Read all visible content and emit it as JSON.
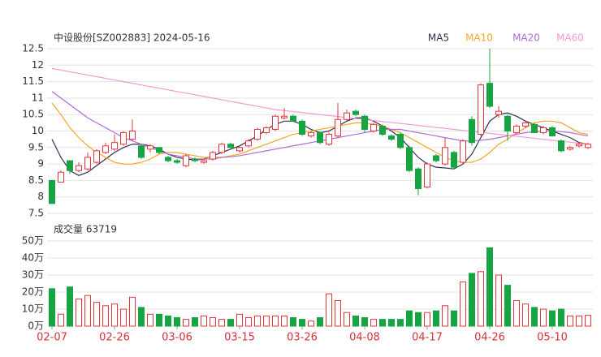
{
  "chart_data": [
    {
      "type": "candlestick",
      "title": "中设股份[SZ002883] 2024-05-16",
      "up_color": "#e8333b",
      "down_color": "#17a443",
      "ylim": [
        7.5,
        12.5
      ],
      "yticks": [
        12.5,
        12,
        11.5,
        11,
        10.5,
        10,
        9.5,
        9,
        8.5,
        8,
        7.5
      ],
      "grid": true,
      "open": [
        8.5,
        8.45,
        9.1,
        8.8,
        8.85,
        9.05,
        9.35,
        9.45,
        9.6,
        9.75,
        9.55,
        9.45,
        9.5,
        9.2,
        9.1,
        8.95,
        9.15,
        9.05,
        9.15,
        9.35,
        9.6,
        9.4,
        9.55,
        9.75,
        9.95,
        10.05,
        10.4,
        10.45,
        10.3,
        9.85,
        9.95,
        9.6,
        9.85,
        10.35,
        10.6,
        10.45,
        10.0,
        10.15,
        9.85,
        9.9,
        9.5,
        8.85,
        8.3,
        9.25,
        9.0,
        9.35,
        9.05,
        10.35,
        9.9,
        11.45,
        10.5,
        10.45,
        9.95,
        10.15,
        10.2,
        9.95,
        10.1,
        9.7,
        9.45,
        9.55,
        9.5
      ],
      "high": [
        8.5,
        8.8,
        9.1,
        9.05,
        9.35,
        9.45,
        9.65,
        9.9,
        10.0,
        10.35,
        9.6,
        9.6,
        9.5,
        9.25,
        9.15,
        9.3,
        9.2,
        9.15,
        9.4,
        9.65,
        9.65,
        9.55,
        9.75,
        10.1,
        10.15,
        10.5,
        10.7,
        10.5,
        10.35,
        10.0,
        10.0,
        9.95,
        10.85,
        10.65,
        10.65,
        10.5,
        10.25,
        10.2,
        9.9,
        9.95,
        9.55,
        8.9,
        9.05,
        9.3,
        9.8,
        9.4,
        9.75,
        10.45,
        11.45,
        12.5,
        10.75,
        10.5,
        10.2,
        10.3,
        10.25,
        10.15,
        10.15,
        9.75,
        9.55,
        9.65,
        9.65
      ],
      "low": [
        7.8,
        8.45,
        8.7,
        8.75,
        8.8,
        9.0,
        9.3,
        9.4,
        9.55,
        9.7,
        9.15,
        9.35,
        9.3,
        9.05,
        9.0,
        8.9,
        9.05,
        9.0,
        9.1,
        9.3,
        9.5,
        9.35,
        9.5,
        9.7,
        9.9,
        10.0,
        10.35,
        10.3,
        9.85,
        9.8,
        9.6,
        9.55,
        9.8,
        10.3,
        10.45,
        9.95,
        9.95,
        9.85,
        9.7,
        9.45,
        8.75,
        8.05,
        8.25,
        9.05,
        8.95,
        8.85,
        9.0,
        9.55,
        9.85,
        10.7,
        10.4,
        9.7,
        9.9,
        10.1,
        9.95,
        9.9,
        9.85,
        9.35,
        9.4,
        9.5,
        9.45
      ],
      "close": [
        7.8,
        8.75,
        8.8,
        8.95,
        9.2,
        9.4,
        9.55,
        9.65,
        9.95,
        10.0,
        9.2,
        9.55,
        9.35,
        9.1,
        9.05,
        9.25,
        9.1,
        9.1,
        9.35,
        9.6,
        9.5,
        9.5,
        9.7,
        10.05,
        10.1,
        10.45,
        10.45,
        10.3,
        9.9,
        9.95,
        9.65,
        9.9,
        10.35,
        10.55,
        10.5,
        10.05,
        10.2,
        9.9,
        9.75,
        9.5,
        8.8,
        8.25,
        9.0,
        9.1,
        9.5,
        8.9,
        9.7,
        9.65,
        11.4,
        10.75,
        10.6,
        10.0,
        10.15,
        10.25,
        9.95,
        10.1,
        9.85,
        9.4,
        9.5,
        9.6,
        9.6
      ],
      "series": [
        {
          "name": "MA5",
          "color": "#2e3150",
          "values": [
            9.75,
            9.2,
            8.8,
            8.65,
            8.75,
            8.95,
            9.15,
            9.35,
            9.5,
            9.6,
            9.6,
            9.55,
            9.45,
            9.3,
            9.2,
            9.15,
            9.12,
            9.15,
            9.25,
            9.35,
            9.45,
            9.55,
            9.7,
            9.85,
            10.05,
            10.2,
            10.3,
            10.3,
            10.2,
            10.05,
            9.95,
            10.0,
            10.15,
            10.3,
            10.4,
            10.4,
            10.3,
            10.15,
            10.0,
            9.8,
            9.5,
            9.2,
            9.0,
            8.9,
            8.88,
            8.85,
            9.0,
            9.3,
            9.8,
            10.3,
            10.5,
            10.55,
            10.45,
            10.3,
            10.2,
            10.1,
            10.0,
            9.9,
            9.8,
            9.65,
            9.6
          ]
        },
        {
          "name": "MA10",
          "color": "#f5a623",
          "values": [
            10.85,
            10.5,
            10.1,
            9.8,
            9.55,
            9.35,
            9.2,
            9.05,
            9.0,
            9.0,
            9.05,
            9.15,
            9.3,
            9.35,
            9.35,
            9.3,
            9.25,
            9.2,
            9.2,
            9.2,
            9.25,
            9.3,
            9.4,
            9.5,
            9.6,
            9.7,
            9.8,
            9.9,
            9.95,
            10.0,
            10.05,
            10.1,
            10.15,
            10.2,
            10.25,
            10.25,
            10.2,
            10.15,
            10.05,
            9.95,
            9.8,
            9.65,
            9.5,
            9.35,
            9.2,
            9.1,
            9.05,
            9.05,
            9.15,
            9.35,
            9.6,
            9.75,
            9.95,
            10.1,
            10.25,
            10.3,
            10.3,
            10.25,
            10.1,
            9.95,
            9.9
          ]
        },
        {
          "name": "MA20",
          "color": "#b36ad8",
          "values": [
            11.2,
            11.0,
            10.8,
            10.6,
            10.4,
            10.25,
            10.1,
            9.95,
            9.8,
            9.7,
            9.6,
            9.5,
            9.4,
            9.3,
            9.25,
            9.2,
            9.15,
            9.15,
            9.15,
            9.2,
            9.22,
            9.25,
            9.3,
            9.35,
            9.4,
            9.45,
            9.5,
            9.55,
            9.6,
            9.65,
            9.7,
            9.75,
            9.8,
            9.85,
            9.9,
            9.95,
            10.0,
            10.05,
            10.05,
            10.05,
            10.0,
            9.95,
            9.9,
            9.85,
            9.8,
            9.75,
            9.7,
            9.7,
            9.72,
            9.75,
            9.8,
            9.85,
            9.9,
            9.95,
            9.98,
            10.0,
            10.0,
            9.98,
            9.95,
            9.9,
            9.85
          ]
        },
        {
          "name": "MA60",
          "color": "#f29ad3",
          "values": [
            11.9,
            11.85,
            11.8,
            11.75,
            11.7,
            11.65,
            11.6,
            11.55,
            11.5,
            11.45,
            11.4,
            11.35,
            11.3,
            11.25,
            11.2,
            11.15,
            11.1,
            11.05,
            11.0,
            10.95,
            10.9,
            10.85,
            10.8,
            10.75,
            10.7,
            10.65,
            10.62,
            10.59,
            10.56,
            10.53,
            10.5,
            10.47,
            10.44,
            10.41,
            10.38,
            10.35,
            10.32,
            10.29,
            10.26,
            10.23,
            10.2,
            10.17,
            10.14,
            10.11,
            10.08,
            10.05,
            10.02,
            9.99,
            9.96,
            9.93,
            9.9,
            9.87,
            9.84,
            9.81,
            9.78,
            9.75,
            9.72,
            9.69,
            9.66,
            9.63,
            9.6
          ]
        }
      ]
    },
    {
      "type": "volume",
      "title": "成交量 63719",
      "categories": [
        "02-07",
        null,
        null,
        null,
        null,
        null,
        null,
        "02-26",
        null,
        null,
        null,
        null,
        null,
        null,
        "03-06",
        null,
        null,
        null,
        null,
        null,
        null,
        "03-15",
        null,
        null,
        null,
        null,
        null,
        null,
        "03-26",
        null,
        null,
        null,
        null,
        null,
        null,
        "04-08",
        null,
        null,
        null,
        null,
        null,
        null,
        "04-17",
        null,
        null,
        null,
        null,
        null,
        null,
        "04-26",
        null,
        null,
        null,
        null,
        null,
        null,
        "05-10",
        null,
        null,
        null,
        null
      ],
      "values": [
        22,
        7,
        23,
        16,
        18,
        14,
        12,
        13,
        10,
        17,
        11,
        7,
        7,
        6,
        5,
        4,
        5,
        6,
        5,
        4,
        4,
        7,
        5,
        6,
        6,
        6,
        6,
        5,
        4,
        3,
        5,
        19,
        15,
        8,
        6,
        5,
        4,
        4,
        4,
        4,
        9,
        8,
        8,
        9,
        12,
        9,
        26,
        31,
        32,
        46,
        30,
        24,
        15,
        13,
        11,
        10,
        9,
        10,
        6,
        6,
        6.3719
      ],
      "ylim": [
        0,
        50
      ],
      "yticks": [
        {
          "value": 50,
          "label": "50万"
        },
        {
          "value": 40,
          "label": "40万"
        },
        {
          "value": 30,
          "label": "30万"
        },
        {
          "value": 20,
          "label": "20万"
        },
        {
          "value": 10,
          "label": "10万"
        },
        {
          "value": 0,
          "label": "0万"
        }
      ],
      "grid": true
    }
  ]
}
